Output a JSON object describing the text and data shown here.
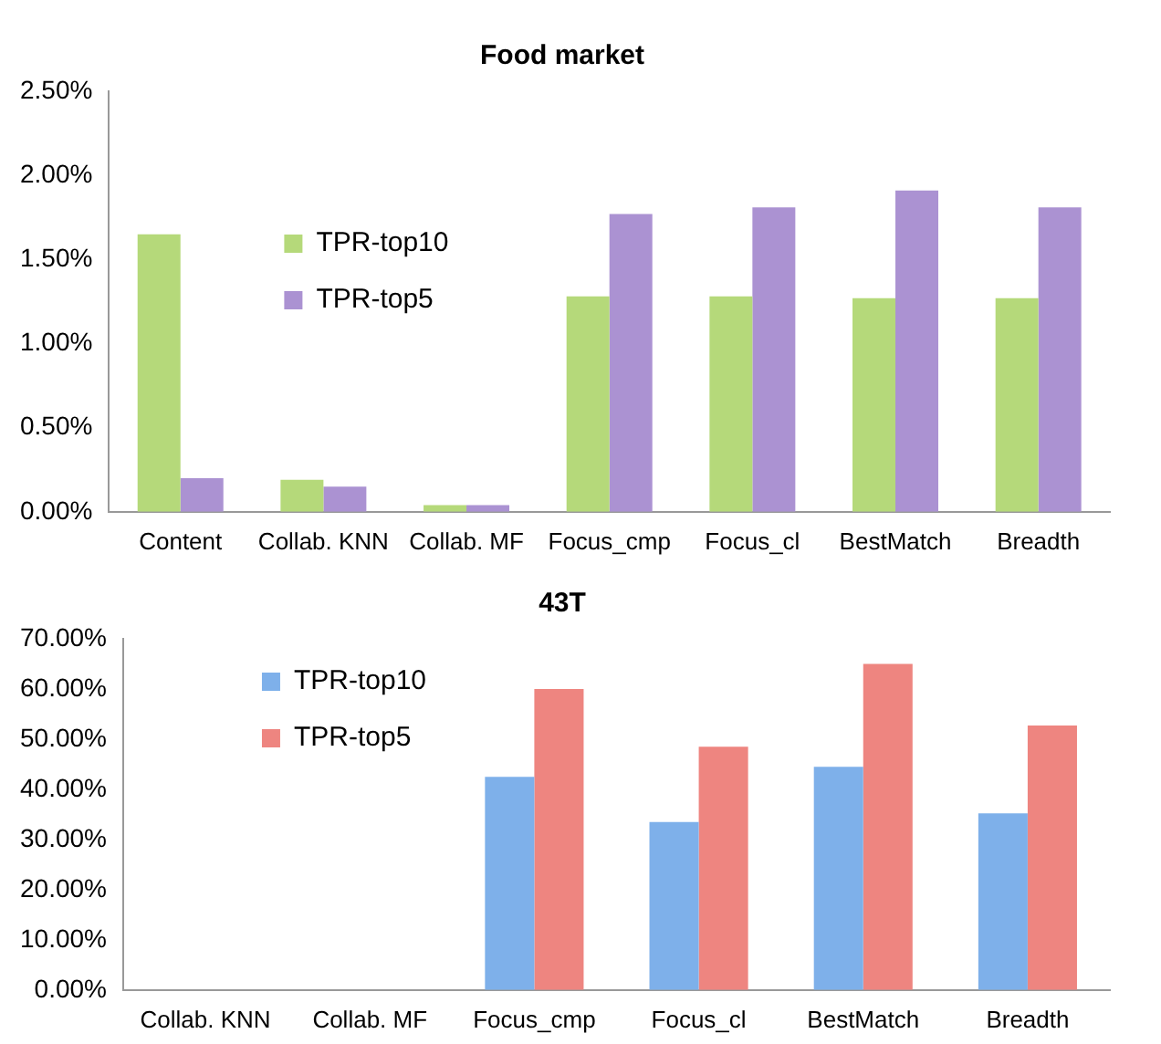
{
  "chart_data": [
    {
      "type": "bar",
      "title": "Food market",
      "categories": [
        "Content",
        "Collab. KNN",
        "Collab. MF",
        "Focus_cmp",
        "Focus_cl",
        "BestMatch",
        "Breadth"
      ],
      "series": [
        {
          "name": "TPR-top10",
          "color": "#b5d97a",
          "values": [
            1.65,
            0.19,
            0.04,
            1.28,
            1.28,
            1.27,
            1.27
          ]
        },
        {
          "name": "TPR-top5",
          "color": "#ab92d2",
          "values": [
            0.2,
            0.15,
            0.04,
            1.77,
            1.81,
            1.91,
            1.81
          ]
        }
      ],
      "ylim": [
        0,
        2.5
      ],
      "yticks": [
        {
          "value": 0,
          "label": "0.00%"
        },
        {
          "value": 0.5,
          "label": "0.50%"
        },
        {
          "value": 1,
          "label": "1.00%"
        },
        {
          "value": 1.5,
          "label": "1.50%"
        },
        {
          "value": 2,
          "label": "2.00%"
        },
        {
          "value": 2.5,
          "label": "2.50%"
        }
      ],
      "legend": "top left"
    },
    {
      "type": "bar",
      "title": "43T",
      "categories": [
        "Collab. KNN",
        "Collab. MF",
        "Focus_cmp",
        "Focus_cl",
        "BestMatch",
        "Breadth"
      ],
      "series": [
        {
          "name": "TPR-top10",
          "color": "#7eb0ea",
          "values": [
            null,
            0,
            42.5,
            33.5,
            44.5,
            35.2
          ]
        },
        {
          "name": "TPR-top5",
          "color": "#ee8580",
          "values": [
            null,
            0,
            60,
            48.5,
            65,
            52.7
          ]
        }
      ],
      "ylim": [
        0,
        70
      ],
      "yticks": [
        {
          "value": 0,
          "label": "0.00%"
        },
        {
          "value": 10,
          "label": "10.00%"
        },
        {
          "value": 20,
          "label": "20.00%"
        },
        {
          "value": 30,
          "label": "30.00%"
        },
        {
          "value": 40,
          "label": "40.00%"
        },
        {
          "value": 50,
          "label": "50.00%"
        },
        {
          "value": 60,
          "label": "60.00%"
        },
        {
          "value": 70,
          "label": "70.00%"
        }
      ],
      "legend": "top left"
    }
  ]
}
